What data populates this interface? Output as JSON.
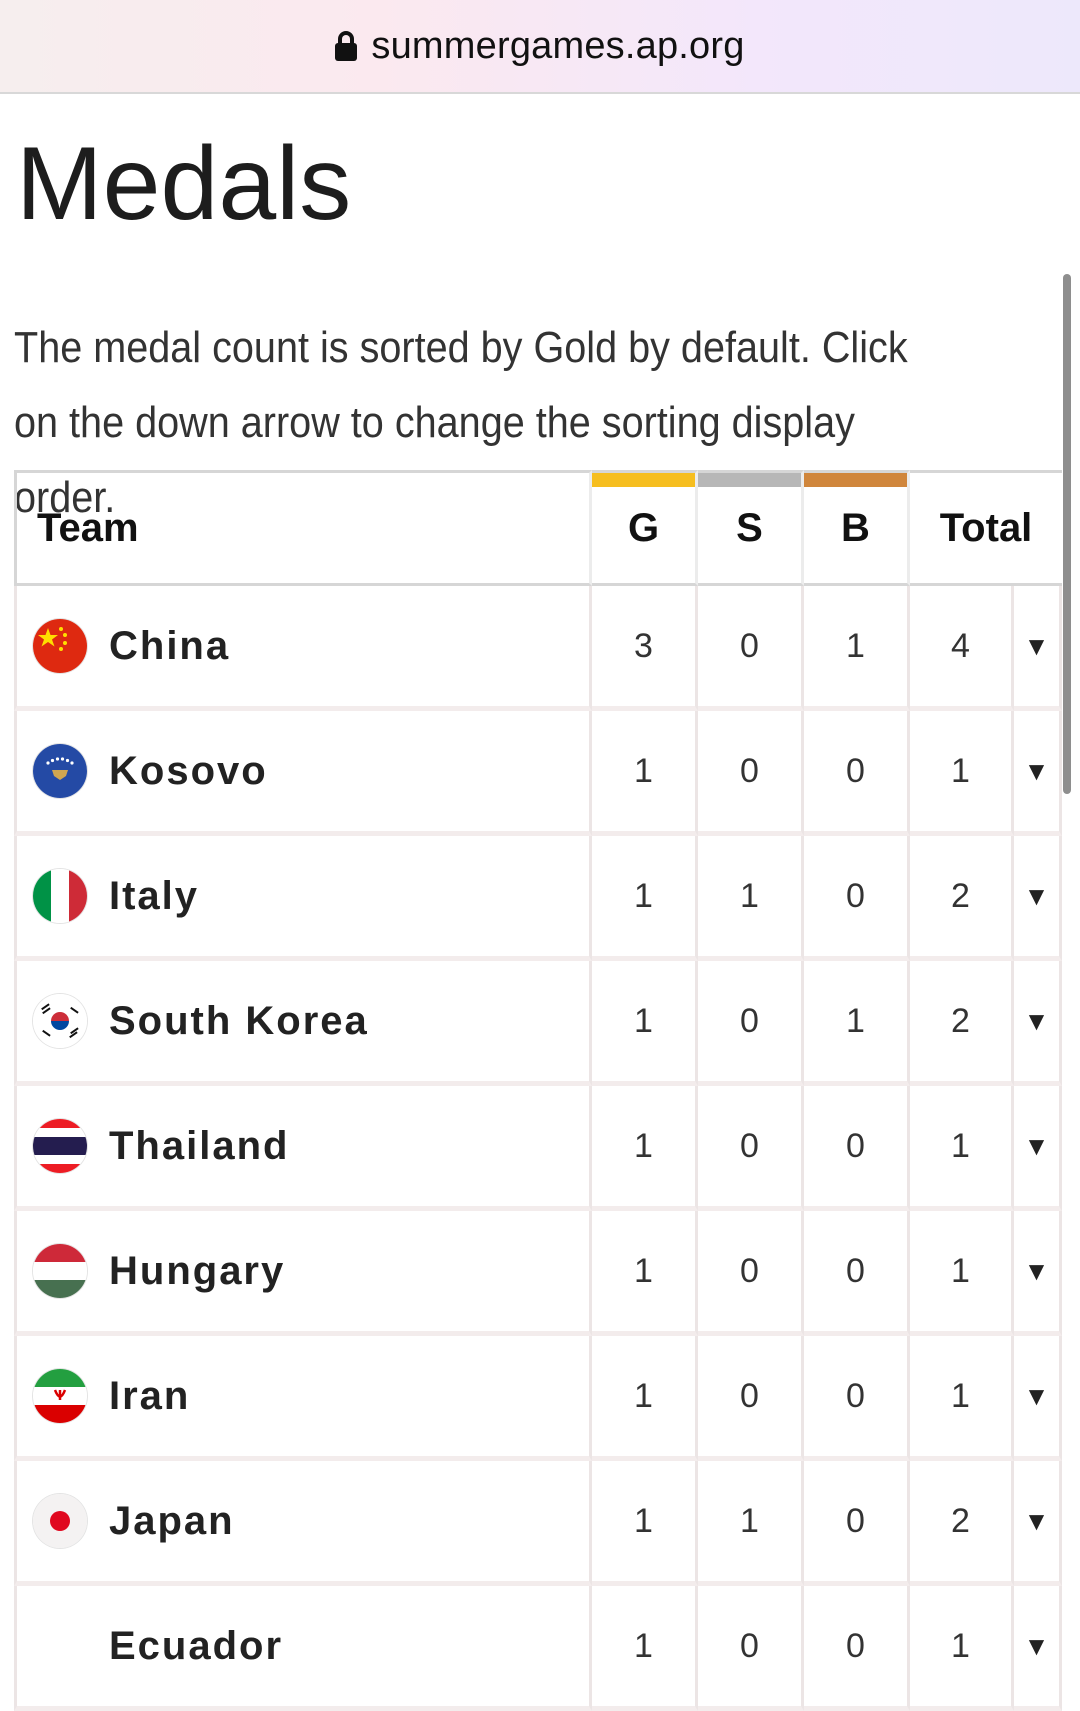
{
  "browser": {
    "url": "summergames.ap.org"
  },
  "page": {
    "title": "Medals",
    "description": "The medal count is sorted by Gold by default. Click on the down arrow to change the sorting display order."
  },
  "table": {
    "headers": {
      "team": "Team",
      "gold": "G",
      "silver": "S",
      "bronze": "B",
      "total": "Total"
    },
    "medal_colors": {
      "gold": "#f6be1f",
      "silver": "#b7b7b7",
      "bronze": "#d0863c"
    },
    "arrow": "▼",
    "rows": [
      {
        "team": "China",
        "flag_icon": "china-flag-icon",
        "g": "3",
        "s": "0",
        "b": "1",
        "total": "4"
      },
      {
        "team": "Kosovo",
        "flag_icon": "kosovo-flag-icon",
        "g": "1",
        "s": "0",
        "b": "0",
        "total": "1"
      },
      {
        "team": "Italy",
        "flag_icon": "italy-flag-icon",
        "g": "1",
        "s": "1",
        "b": "0",
        "total": "2"
      },
      {
        "team": "South Korea",
        "flag_icon": "south-korea-flag-icon",
        "g": "1",
        "s": "0",
        "b": "1",
        "total": "2"
      },
      {
        "team": "Thailand",
        "flag_icon": "thailand-flag-icon",
        "g": "1",
        "s": "0",
        "b": "0",
        "total": "1"
      },
      {
        "team": "Hungary",
        "flag_icon": "hungary-flag-icon",
        "g": "1",
        "s": "0",
        "b": "0",
        "total": "1"
      },
      {
        "team": "Iran",
        "flag_icon": "iran-flag-icon",
        "g": "1",
        "s": "0",
        "b": "0",
        "total": "1"
      },
      {
        "team": "Japan",
        "flag_icon": "japan-flag-icon",
        "g": "1",
        "s": "1",
        "b": "0",
        "total": "2"
      },
      {
        "team": "Ecuador",
        "flag_icon": "",
        "g": "1",
        "s": "0",
        "b": "0",
        "total": "1"
      }
    ]
  }
}
